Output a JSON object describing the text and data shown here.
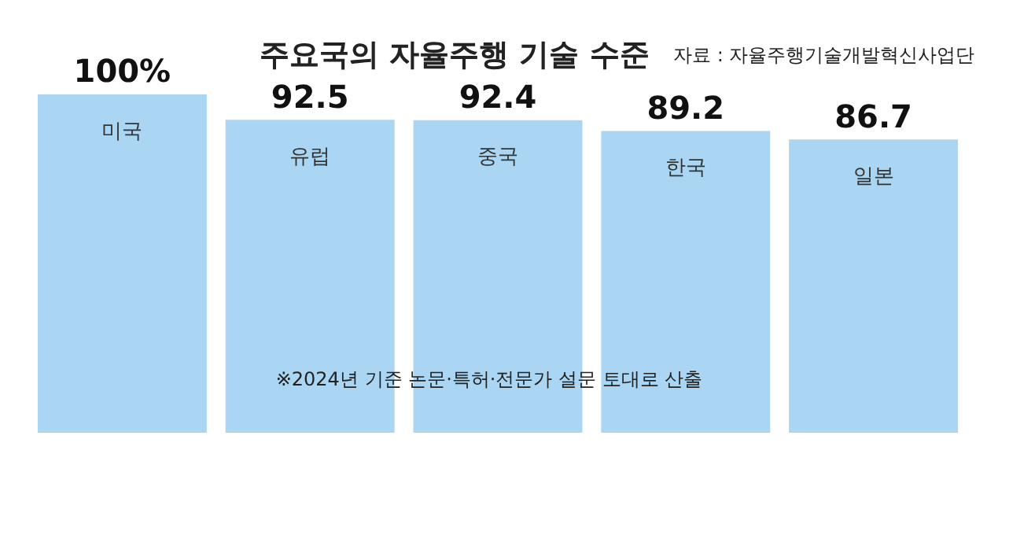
{
  "chart_data": {
    "type": "bar",
    "title": "주요국의 자율주행 기술 수준",
    "categories": [
      "미국",
      "유럽",
      "중국",
      "한국",
      "일본"
    ],
    "values": [
      100,
      92.5,
      92.4,
      89.2,
      86.7
    ],
    "value_labels": [
      "100%",
      "92.5",
      "92.4",
      "89.2",
      "86.7"
    ],
    "color": "#aad6f3",
    "annotations": [
      "자료 : 자율주행기술개발혁신사업단",
      "※2024년 기준 논문·특허·전문가 설문 토대로 산출"
    ]
  }
}
